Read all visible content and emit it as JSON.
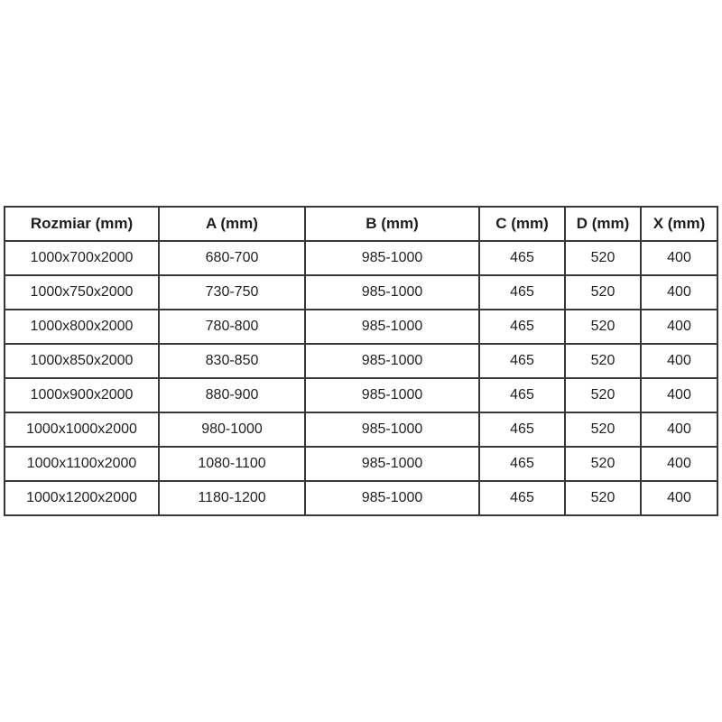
{
  "colors": {
    "background": "#ffffff",
    "grid_border": "#383838",
    "text": "#1f1f1f"
  },
  "chart_data": {
    "type": "table",
    "title": "",
    "columns": [
      "Rozmiar (mm)",
      "A (mm)",
      "B (mm)",
      "C (mm)",
      "D (mm)",
      "X (mm)"
    ],
    "rows": [
      [
        "1000x700x2000",
        "680-700",
        "985-1000",
        "465",
        "520",
        "400"
      ],
      [
        "1000x750x2000",
        "730-750",
        "985-1000",
        "465",
        "520",
        "400"
      ],
      [
        "1000x800x2000",
        "780-800",
        "985-1000",
        "465",
        "520",
        "400"
      ],
      [
        "1000x850x2000",
        "830-850",
        "985-1000",
        "465",
        "520",
        "400"
      ],
      [
        "1000x900x2000",
        "880-900",
        "985-1000",
        "465",
        "520",
        "400"
      ],
      [
        "1000x1000x2000",
        "980-1000",
        "985-1000",
        "465",
        "520",
        "400"
      ],
      [
        "1000x1100x2000",
        "1080-1100",
        "985-1000",
        "465",
        "520",
        "400"
      ],
      [
        "1000x1200x2000",
        "1180-1200",
        "985-1000",
        "465",
        "520",
        "400"
      ]
    ]
  }
}
